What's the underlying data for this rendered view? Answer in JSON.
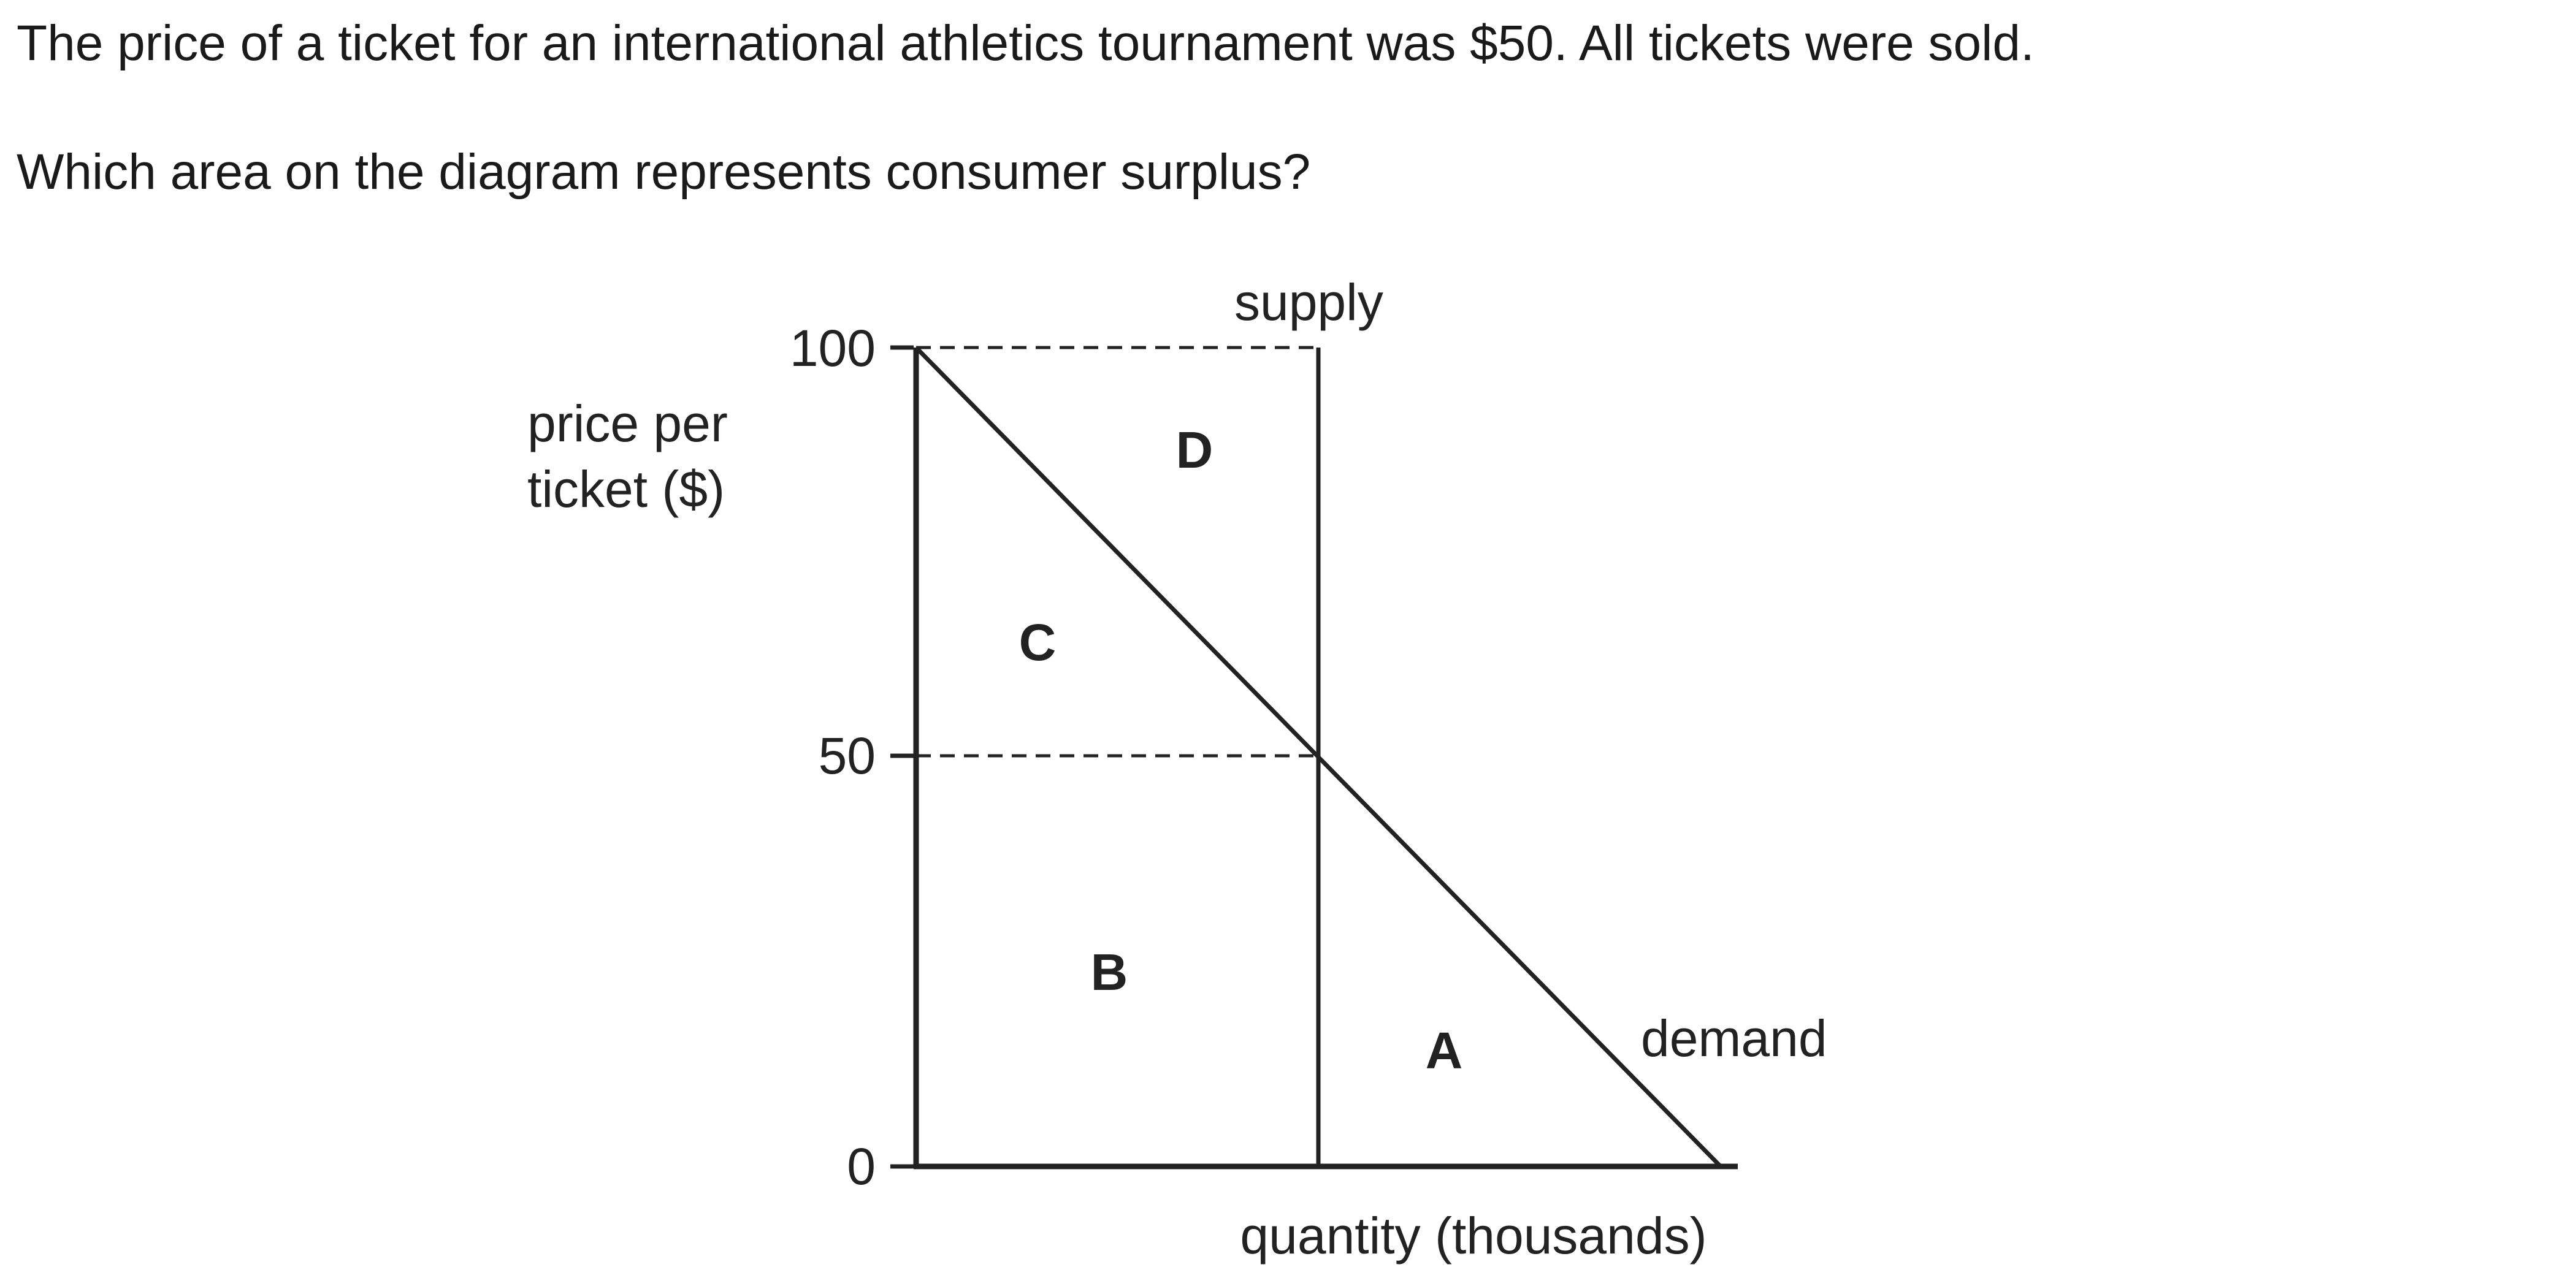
{
  "question": {
    "line1": "The price of a ticket for an international athletics tournament was $50. All tickets were sold.",
    "line2": "Which area on the diagram represents consumer surplus?"
  },
  "diagram": {
    "y_axis_label": [
      "price per",
      "ticket ($)"
    ],
    "y_ticks": [
      "100",
      "50",
      "0"
    ],
    "x_axis_label": "quantity (thousands)",
    "curve_labels": {
      "supply": "supply",
      "demand": "demand"
    },
    "area_labels": {
      "A": "A",
      "B": "B",
      "C": "C",
      "D": "D"
    },
    "colors": {
      "line": "#222222",
      "text": "#222222",
      "background": "#ffffff"
    }
  }
}
